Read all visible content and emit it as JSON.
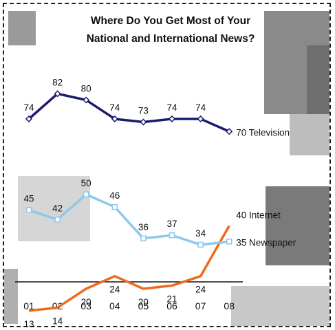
{
  "chart_data": {
    "type": "line",
    "title": [
      "Where Do You Get Most of Your",
      "National and International News?"
    ],
    "categories": [
      "01",
      "02",
      "03",
      "04",
      "05",
      "06",
      "07",
      "08"
    ],
    "ylim": [
      0,
      90
    ],
    "grid": false,
    "legend": "end-of-line labels",
    "series": [
      {
        "name": "Television",
        "color": "#1a1a6e",
        "marker": "diamond",
        "values": [
          74,
          82,
          80,
          74,
          73,
          74,
          74,
          70
        ],
        "end_label": "70 Television"
      },
      {
        "name": "Internet",
        "color": "#f06a1a",
        "marker": "none",
        "values": [
          13,
          14,
          20,
          24,
          20,
          21,
          24,
          40
        ],
        "end_label": "40 Internet"
      },
      {
        "name": "Newspaper",
        "color": "#8ec8ec",
        "marker": "square",
        "values": [
          45,
          42,
          50,
          46,
          36,
          37,
          34,
          35
        ],
        "end_label": "35 Newspaper"
      }
    ]
  }
}
